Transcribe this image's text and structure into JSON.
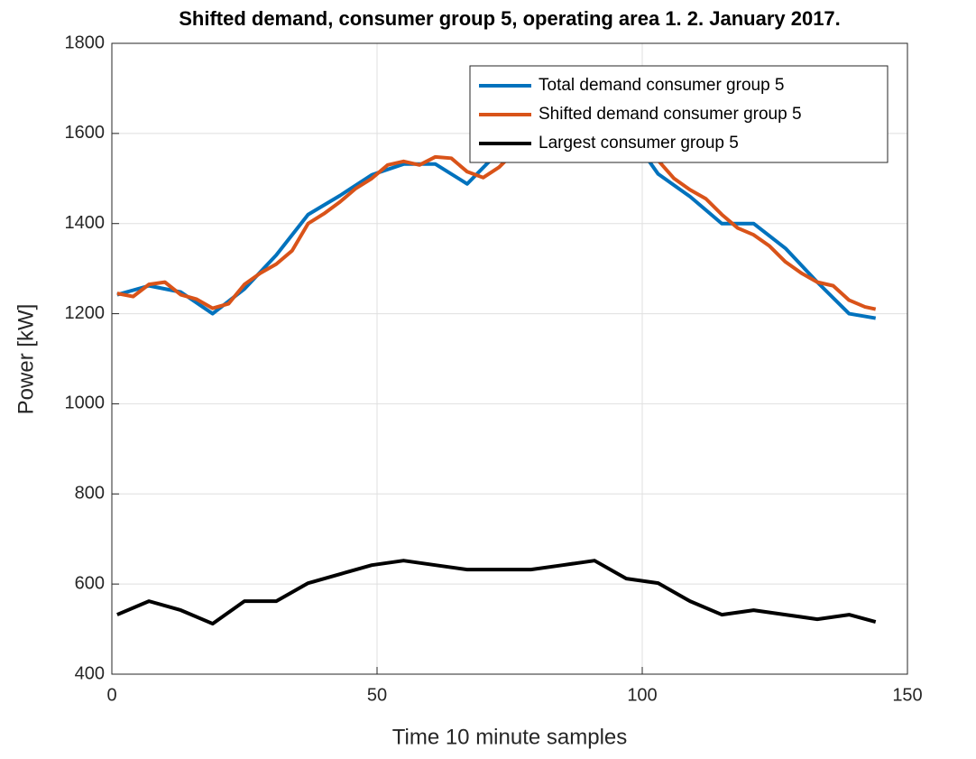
{
  "chart_data": {
    "type": "line",
    "title": "Shifted demand, consumer group 5, operating area 1. 2. January 2017.",
    "x_label": "Time 10 minute samples",
    "y_label": "Power [kW]",
    "xlim": [
      0,
      150
    ],
    "xticks": [
      0,
      50,
      100,
      150
    ],
    "ylim": [
      400,
      1800
    ],
    "yticks": [
      400,
      600,
      800,
      1000,
      1200,
      1400,
      1600,
      1800
    ],
    "grid": true,
    "legend": "northeast",
    "series": [
      {
        "name": "Total demand consumer group 5",
        "color": "#0072bd",
        "x": [
          1,
          7,
          13,
          19,
          25,
          31,
          37,
          43,
          49,
          55,
          61,
          67,
          73,
          79,
          85,
          91,
          97,
          103,
          109,
          115,
          121,
          127,
          133,
          139,
          144
        ],
        "values": [
          1242,
          1262,
          1248,
          1200,
          1255,
          1330,
          1420,
          1462,
          1508,
          1532,
          1532,
          1488,
          1560,
          1600,
          1640,
          1650,
          1610,
          1510,
          1460,
          1400,
          1400,
          1345,
          1270,
          1200,
          1190
        ]
      },
      {
        "name": "Shifted demand consumer group 5",
        "color": "#d95319",
        "x": [
          1,
          4,
          7,
          10,
          13,
          16,
          19,
          22,
          25,
          28,
          31,
          34,
          37,
          40,
          43,
          46,
          49,
          52,
          55,
          58,
          61,
          64,
          67,
          70,
          73,
          76,
          79,
          82,
          85,
          88,
          91,
          94,
          97,
          100,
          103,
          106,
          109,
          112,
          115,
          118,
          121,
          124,
          127,
          130,
          133,
          136,
          139,
          142,
          144
        ],
        "values": [
          1245,
          1238,
          1265,
          1270,
          1242,
          1232,
          1212,
          1222,
          1265,
          1290,
          1310,
          1340,
          1400,
          1422,
          1448,
          1478,
          1500,
          1530,
          1538,
          1530,
          1548,
          1545,
          1515,
          1502,
          1525,
          1560,
          1600,
          1630,
          1650,
          1660,
          1660,
          1640,
          1600,
          1570,
          1540,
          1500,
          1475,
          1455,
          1420,
          1390,
          1375,
          1350,
          1315,
          1290,
          1270,
          1262,
          1230,
          1215,
          1210
        ]
      },
      {
        "name": "Largest consumer group 5",
        "color": "#000000",
        "x": [
          1,
          7,
          13,
          19,
          25,
          31,
          37,
          43,
          49,
          55,
          61,
          67,
          73,
          79,
          85,
          91,
          97,
          103,
          109,
          115,
          121,
          127,
          133,
          139,
          144
        ],
        "values": [
          532,
          562,
          542,
          512,
          562,
          562,
          602,
          622,
          642,
          652,
          642,
          632,
          632,
          632,
          642,
          652,
          612,
          602,
          562,
          532,
          542,
          532,
          522,
          532,
          516
        ]
      }
    ]
  }
}
